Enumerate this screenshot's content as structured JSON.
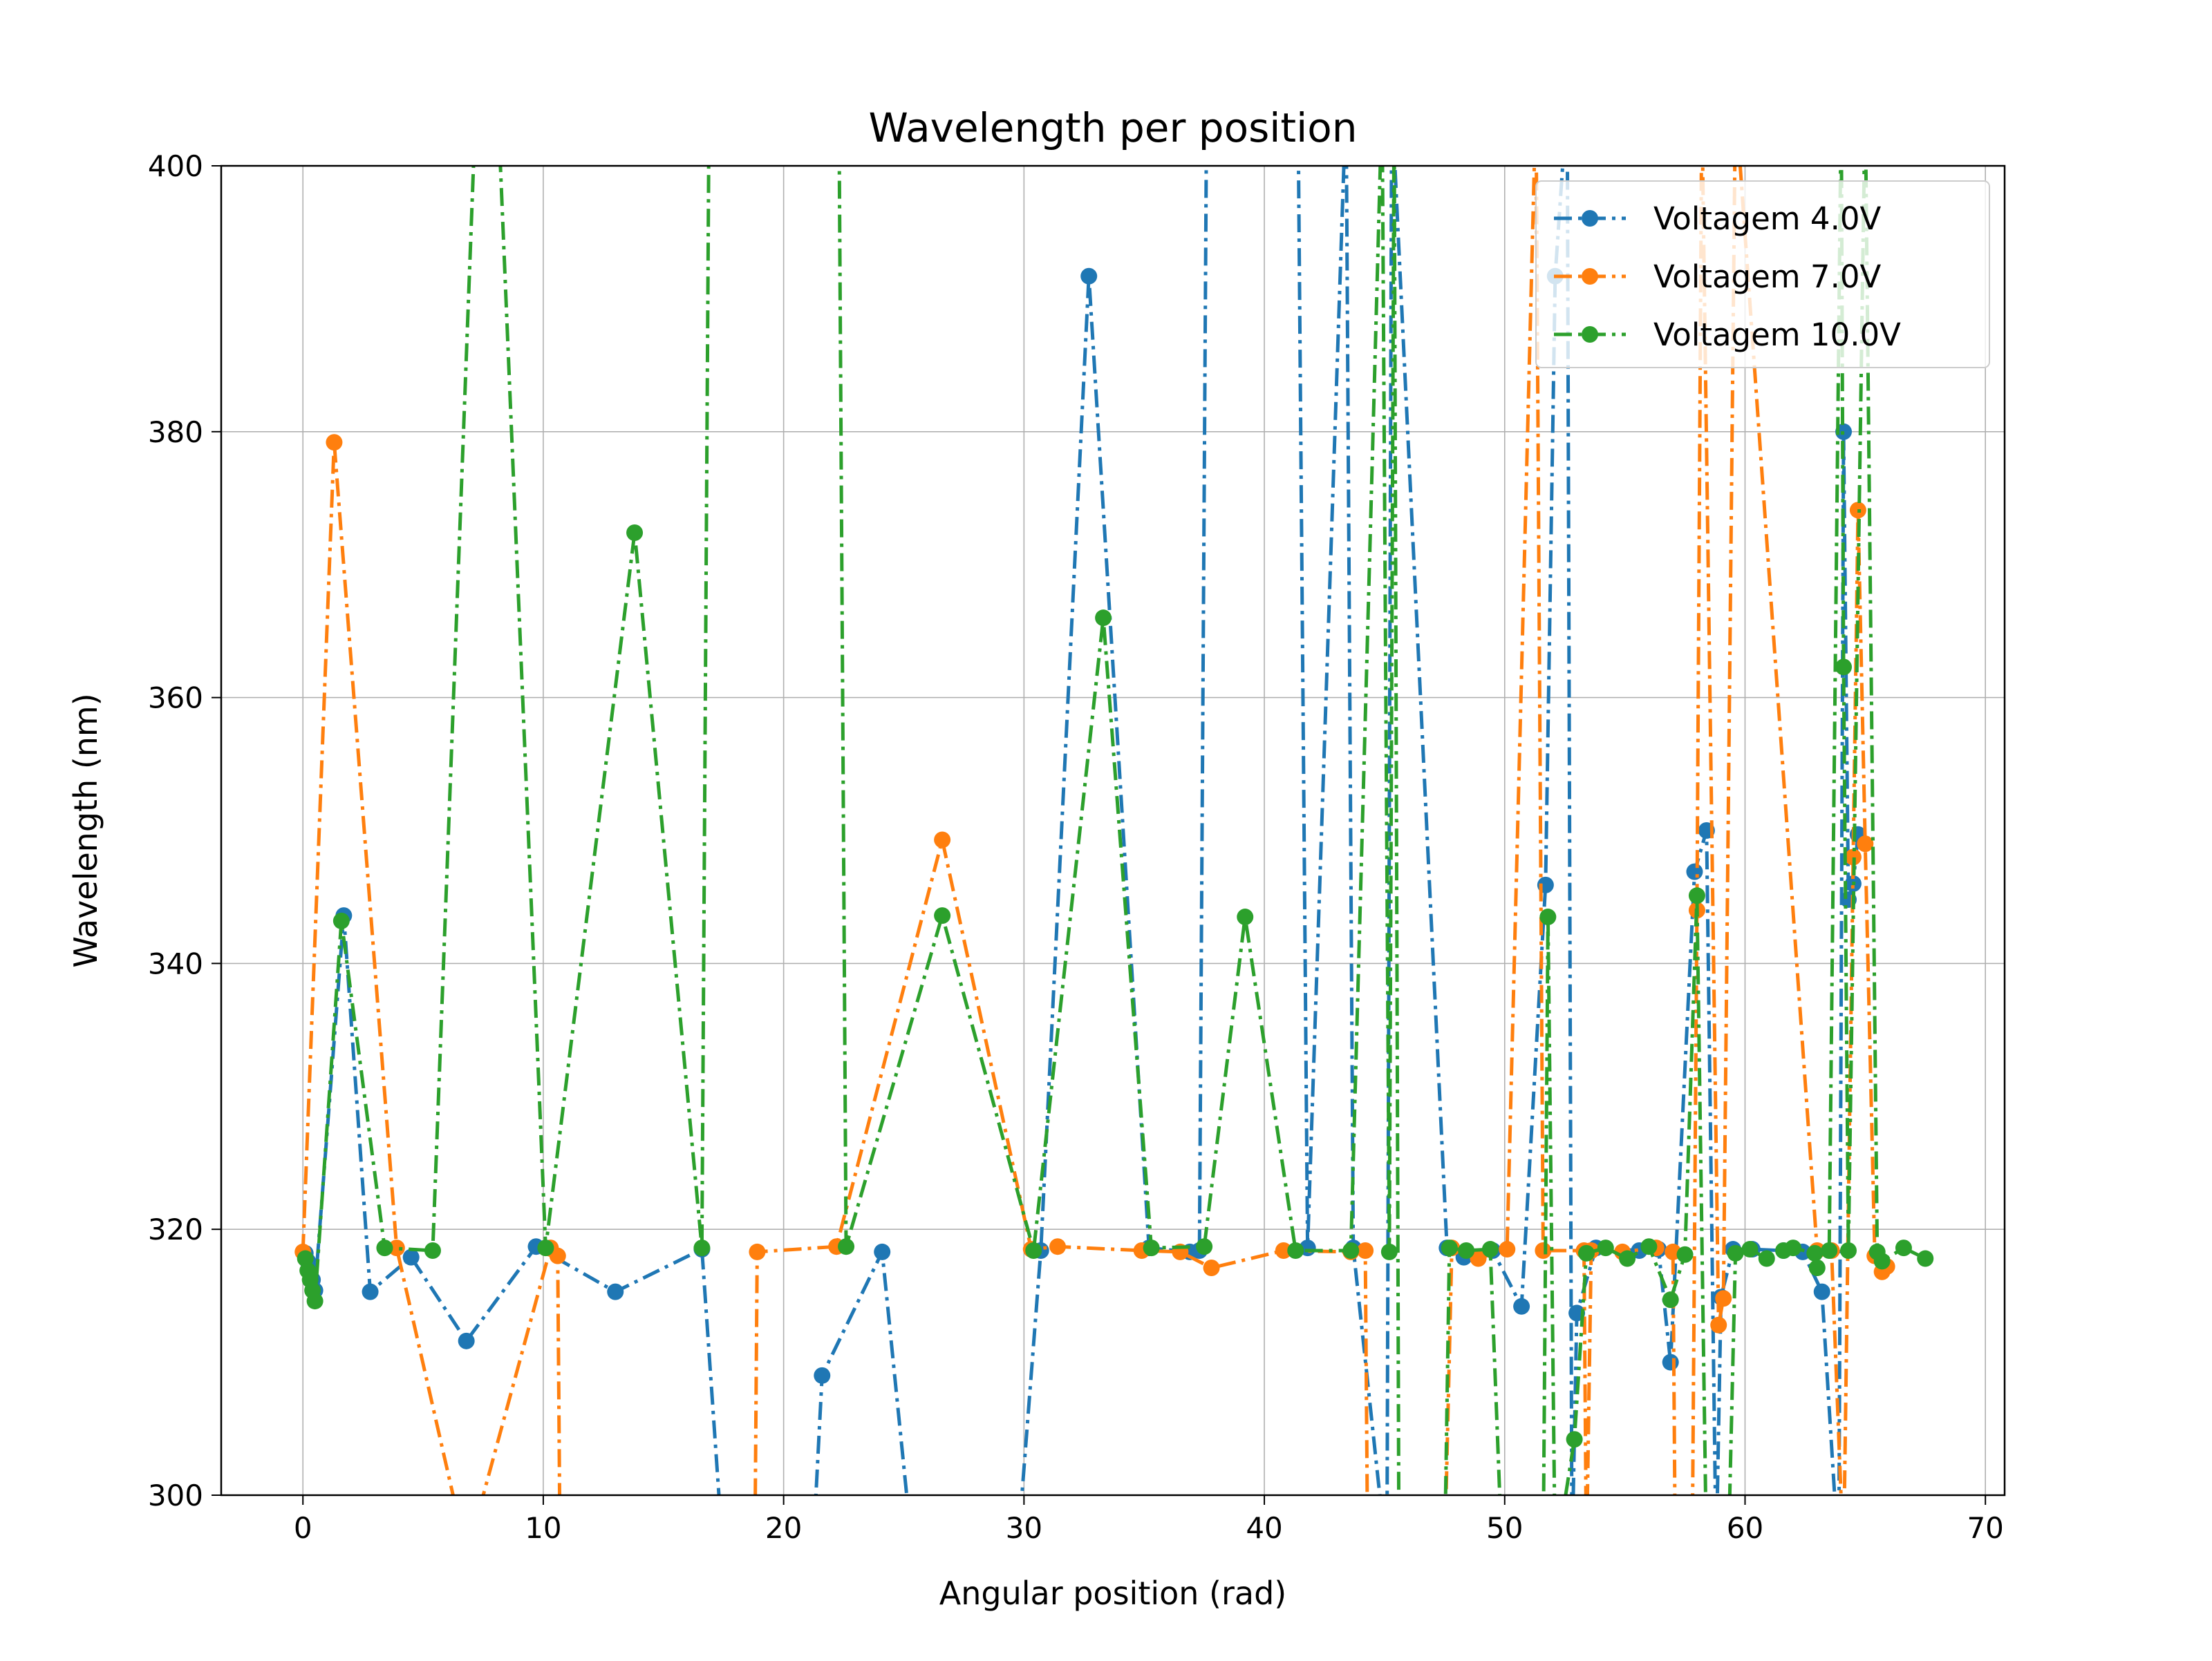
{
  "chart_data": {
    "type": "line",
    "title": "Wavelength per position",
    "xlabel": "Angular position (rad)",
    "ylabel": "Wavelength (nm)",
    "xlim": [
      -3.4,
      70.8
    ],
    "ylim": [
      300,
      400
    ],
    "xticks": [
      0,
      10,
      20,
      30,
      40,
      50,
      60,
      70
    ],
    "yticks": [
      300,
      320,
      340,
      360,
      380,
      400
    ],
    "grid": true,
    "legend": {
      "position": "top-right"
    },
    "series": [
      {
        "name": "Voltagem 4.0V",
        "color": "#1f77b4",
        "linestyle": "dash-dot",
        "marker": "circle",
        "points": [
          [
            0.1,
            318.2
          ],
          [
            0.2,
            317.6
          ],
          [
            0.3,
            317.0
          ],
          [
            0.4,
            316.2
          ],
          [
            0.5,
            315.4
          ],
          [
            1.7,
            343.6
          ],
          [
            2.8,
            315.3
          ],
          [
            4.5,
            317.9
          ],
          [
            6.8,
            311.6
          ],
          [
            9.7,
            318.7
          ],
          [
            13.0,
            315.3
          ],
          [
            16.6,
            318.5
          ],
          [
            17.5,
            295.0
          ],
          [
            21.2,
            295.0
          ],
          [
            21.6,
            309.0
          ],
          [
            24.1,
            318.3
          ],
          [
            25.4,
            295.0
          ],
          [
            29.7,
            295.0
          ],
          [
            30.7,
            318.4
          ],
          [
            32.7,
            391.7
          ],
          [
            35.2,
            318.6
          ],
          [
            36.9,
            318.3
          ],
          [
            37.3,
            318.4
          ],
          [
            37.6,
            405.0
          ],
          [
            41.4,
            405.0
          ],
          [
            41.8,
            318.6
          ],
          [
            43.4,
            405.0
          ],
          [
            43.7,
            318.6
          ],
          [
            45.1,
            295.0
          ],
          [
            45.3,
            405.0
          ],
          [
            47.6,
            318.6
          ],
          [
            48.3,
            317.9
          ],
          [
            49.5,
            318.4
          ],
          [
            50.7,
            314.2
          ],
          [
            51.7,
            345.9
          ],
          [
            52.1,
            391.7
          ],
          [
            52.6,
            405.0
          ],
          [
            52.8,
            295.0
          ],
          [
            53.0,
            313.7
          ],
          [
            53.8,
            318.6
          ],
          [
            55.6,
            318.4
          ],
          [
            56.4,
            318.5
          ],
          [
            56.9,
            310.0
          ],
          [
            57.9,
            346.9
          ],
          [
            58.4,
            350.0
          ],
          [
            58.8,
            295.0
          ],
          [
            59.0,
            314.9
          ],
          [
            59.5,
            318.5
          ],
          [
            60.3,
            318.5
          ],
          [
            61.6,
            318.4
          ],
          [
            62.4,
            318.3
          ],
          [
            63.2,
            315.3
          ],
          [
            63.9,
            295.0
          ],
          [
            64.1,
            380.0
          ],
          [
            64.3,
            344.8
          ],
          [
            64.5,
            346.0
          ],
          [
            64.7,
            349.7
          ]
        ]
      },
      {
        "name": "Voltagem 7.0V",
        "color": "#ff7f0e",
        "linestyle": "dash-dot",
        "marker": "circle",
        "points": [
          [
            0.0,
            318.3
          ],
          [
            1.3,
            379.2
          ],
          [
            3.9,
            318.6
          ],
          [
            6.5,
            298.0
          ],
          [
            7.2,
            298.0
          ],
          [
            10.3,
            318.6
          ],
          [
            10.6,
            318.0
          ],
          [
            10.7,
            295.0
          ],
          [
            18.8,
            295.0
          ],
          [
            18.9,
            318.3
          ],
          [
            22.2,
            318.7
          ],
          [
            26.6,
            349.3
          ],
          [
            30.3,
            318.5
          ],
          [
            31.4,
            318.7
          ],
          [
            34.9,
            318.4
          ],
          [
            36.5,
            318.3
          ],
          [
            37.8,
            317.1
          ],
          [
            40.8,
            318.4
          ],
          [
            43.6,
            318.3
          ],
          [
            44.2,
            318.4
          ],
          [
            44.3,
            295.0
          ],
          [
            47.5,
            295.0
          ],
          [
            47.8,
            318.6
          ],
          [
            48.9,
            317.8
          ],
          [
            50.1,
            318.5
          ],
          [
            51.3,
            405.0
          ],
          [
            51.6,
            318.4
          ],
          [
            53.3,
            318.4
          ],
          [
            53.4,
            295.0
          ],
          [
            53.6,
            318.4
          ],
          [
            54.9,
            318.3
          ],
          [
            56.3,
            318.6
          ],
          [
            57.0,
            318.3
          ],
          [
            57.1,
            295.0
          ],
          [
            57.8,
            295.0
          ],
          [
            58.0,
            344.0
          ],
          [
            58.2,
            405.0
          ],
          [
            58.9,
            312.8
          ],
          [
            59.1,
            314.8
          ],
          [
            59.6,
            405.0
          ],
          [
            63.0,
            318.4
          ],
          [
            63.6,
            318.4
          ],
          [
            64.1,
            295.0
          ],
          [
            64.5,
            348.0
          ],
          [
            64.7,
            374.1
          ],
          [
            65.0,
            349.0
          ],
          [
            65.4,
            318.0
          ],
          [
            65.7,
            316.8
          ],
          [
            65.9,
            317.2
          ]
        ]
      },
      {
        "name": "Voltagem 10.0V",
        "color": "#2ca02c",
        "linestyle": "dash-dot",
        "marker": "circle",
        "points": [
          [
            0.1,
            317.8
          ],
          [
            0.2,
            316.9
          ],
          [
            0.3,
            316.2
          ],
          [
            0.4,
            315.4
          ],
          [
            0.5,
            314.6
          ],
          [
            1.6,
            343.2
          ],
          [
            3.4,
            318.6
          ],
          [
            5.4,
            318.4
          ],
          [
            7.2,
            405.0
          ],
          [
            8.1,
            405.0
          ],
          [
            10.1,
            318.6
          ],
          [
            13.8,
            372.4
          ],
          [
            16.6,
            318.6
          ],
          [
            16.9,
            405.0
          ],
          [
            22.3,
            405.0
          ],
          [
            22.6,
            318.7
          ],
          [
            26.6,
            343.6
          ],
          [
            30.4,
            318.4
          ],
          [
            33.3,
            366.0
          ],
          [
            35.3,
            318.6
          ],
          [
            37.5,
            318.7
          ],
          [
            39.2,
            343.5
          ],
          [
            41.3,
            318.4
          ],
          [
            43.6,
            318.4
          ],
          [
            44.9,
            405.0
          ],
          [
            45.2,
            318.3
          ],
          [
            45.4,
            405.0
          ],
          [
            45.6,
            295.0
          ],
          [
            47.5,
            295.0
          ],
          [
            47.7,
            318.6
          ],
          [
            48.4,
            318.4
          ],
          [
            49.4,
            318.5
          ],
          [
            49.9,
            295.0
          ],
          [
            51.6,
            295.0
          ],
          [
            51.8,
            343.5
          ],
          [
            52.1,
            295.0
          ],
          [
            52.9,
            304.2
          ],
          [
            53.4,
            318.2
          ],
          [
            54.2,
            318.6
          ],
          [
            55.1,
            317.8
          ],
          [
            56.0,
            318.7
          ],
          [
            56.9,
            314.7
          ],
          [
            57.5,
            318.1
          ],
          [
            58.0,
            345.1
          ],
          [
            58.4,
            295.0
          ],
          [
            59.3,
            295.0
          ],
          [
            59.6,
            318.2
          ],
          [
            60.2,
            318.5
          ],
          [
            60.9,
            317.8
          ],
          [
            61.6,
            318.4
          ],
          [
            62.0,
            318.6
          ],
          [
            62.9,
            318.2
          ],
          [
            63.0,
            317.1
          ],
          [
            63.5,
            318.4
          ],
          [
            64.0,
            405.0
          ],
          [
            64.1,
            362.3
          ],
          [
            64.3,
            318.4
          ],
          [
            65.0,
            405.0
          ],
          [
            65.5,
            318.3
          ],
          [
            65.7,
            317.6
          ],
          [
            66.6,
            318.6
          ],
          [
            67.5,
            317.8
          ]
        ]
      }
    ]
  }
}
